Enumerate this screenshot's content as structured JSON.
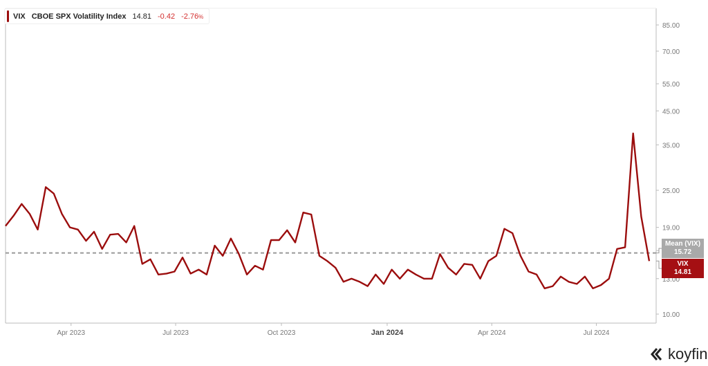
{
  "legend": {
    "symbol": "VIX",
    "name": "CBOE SPX Volatility Index",
    "last": "14.81",
    "change": "-0.42",
    "change_pct": "-2.76",
    "pct_sign": "%"
  },
  "labels": {
    "mean": {
      "title": "Mean (VIX)",
      "value": "15.72"
    },
    "last": {
      "title": "VIX",
      "value": "14.81"
    }
  },
  "brand": "koyfin",
  "colors": {
    "series": "#9b0d0d",
    "mean": "#999999",
    "axis": "#bbbbbb",
    "tick_text": "#777777"
  },
  "chart_data": {
    "type": "line",
    "title": "VIX CBOE SPX Volatility Index",
    "yscale": "log",
    "ylim": [
      9.4,
      92
    ],
    "yticks": [
      10,
      13,
      16,
      19,
      25,
      35,
      45,
      55,
      70,
      85
    ],
    "ytick_labels": [
      "10.00",
      "13.00",
      "16.00",
      "19.00",
      "25.00",
      "35.00",
      "45.00",
      "55.00",
      "70.00",
      "85.00"
    ],
    "xlim": [
      "2023-02-03",
      "2024-08-22"
    ],
    "xticks": [
      {
        "date": "2023-04-01",
        "label": "Apr 2023",
        "bold": false
      },
      {
        "date": "2023-07-01",
        "label": "Jul 2023",
        "bold": false
      },
      {
        "date": "2023-10-01",
        "label": "Oct 2023",
        "bold": false
      },
      {
        "date": "2024-01-01",
        "label": "Jan 2024",
        "bold": true
      },
      {
        "date": "2024-04-01",
        "label": "Apr 2024",
        "bold": false
      },
      {
        "date": "2024-07-01",
        "label": "Jul 2024",
        "bold": false
      }
    ],
    "grid": false,
    "mean": 15.72,
    "series": [
      {
        "name": "VIX",
        "start_date": "2023-02-03",
        "interval_days": 7,
        "values": [
          19.2,
          20.7,
          22.6,
          21.0,
          18.7,
          25.6,
          24.4,
          21.0,
          19.0,
          18.7,
          17.2,
          18.4,
          16.2,
          18.0,
          18.1,
          17.0,
          19.2,
          14.5,
          15.0,
          13.4,
          13.5,
          13.7,
          15.2,
          13.5,
          13.9,
          13.4,
          16.6,
          15.4,
          17.5,
          15.6,
          13.4,
          14.3,
          13.9,
          17.3,
          17.3,
          18.6,
          17.0,
          21.2,
          20.9,
          15.4,
          14.8,
          14.1,
          12.7,
          13.0,
          12.7,
          12.3,
          13.4,
          12.5,
          13.9,
          13.0,
          13.9,
          13.4,
          13.0,
          13.0,
          15.6,
          14.1,
          13.4,
          14.5,
          14.4,
          13.0,
          14.8,
          15.4,
          18.8,
          18.2,
          15.4,
          13.7,
          13.4,
          12.1,
          12.3,
          13.2,
          12.7,
          12.5,
          13.2,
          12.1,
          12.4,
          13.0,
          16.2,
          16.4,
          38.1,
          20.6,
          14.81
        ]
      }
    ]
  }
}
